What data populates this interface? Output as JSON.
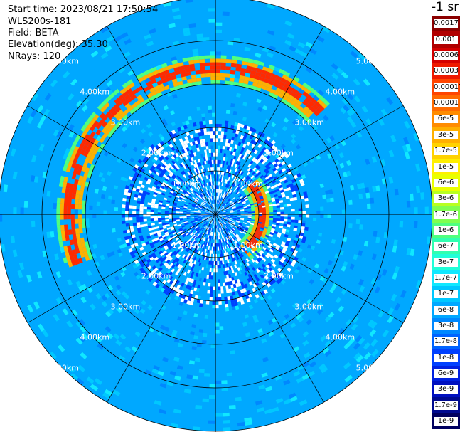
{
  "header": {
    "start_time": "Start time: 2023/08/21 17:50:54",
    "instrument": "WLS200s-181",
    "field": "Field: BETA",
    "elevation": "Elevation(deg): 35.30",
    "nrays": "NRays: 120"
  },
  "colorbar": {
    "unit_label": "-1 sr",
    "bins": [
      {
        "label": "0.0017",
        "color": "#8b0000"
      },
      {
        "label": "0.001",
        "color": "#b00000"
      },
      {
        "label": "0.0006",
        "color": "#d40000"
      },
      {
        "label": "0.0003",
        "color": "#ee1a00"
      },
      {
        "label": "0.00017",
        "color": "#ff4500"
      },
      {
        "label": "0.0001",
        "color": "#ff6a00"
      },
      {
        "label": "6e-5",
        "color": "#ff8c00"
      },
      {
        "label": "3e-5",
        "color": "#ffb000"
      },
      {
        "label": "1.7e-5",
        "color": "#ffd200"
      },
      {
        "label": "1e-5",
        "color": "#ffef00"
      },
      {
        "label": "6e-6",
        "color": "#eaff00"
      },
      {
        "label": "3e-6",
        "color": "#b9ff20"
      },
      {
        "label": "1.7e-6",
        "color": "#80ff50"
      },
      {
        "label": "1e-6",
        "color": "#50ff80"
      },
      {
        "label": "6e-7",
        "color": "#30ffb0"
      },
      {
        "label": "3e-7",
        "color": "#20ffd8"
      },
      {
        "label": "1.7e-7",
        "color": "#10e8ff"
      },
      {
        "label": "1e-7",
        "color": "#00c8ff"
      },
      {
        "label": "6e-8",
        "color": "#00a8ff"
      },
      {
        "label": "3e-8",
        "color": "#0088ff"
      },
      {
        "label": "1.7e-8",
        "color": "#0064ff"
      },
      {
        "label": "1e-8",
        "color": "#0040ff"
      },
      {
        "label": "6e-9",
        "color": "#0020e0"
      },
      {
        "label": "3e-9",
        "color": "#0010c0"
      },
      {
        "label": "1.7e-9",
        "color": "#000a90"
      },
      {
        "label": "1e-9",
        "color": "#000060"
      }
    ]
  },
  "chart_data": {
    "type": "heatmap",
    "projection": "polar PPI scan",
    "field": "BETA",
    "elevation_deg": 35.3,
    "n_rays": 120,
    "range_rings_km": [
      1,
      2,
      3,
      4,
      5
    ],
    "range_ring_labels": [
      "1.00km",
      "2.00km",
      "3.00km",
      "4.00km",
      "5.00km"
    ],
    "max_range_km": 5.0,
    "background_level": "1e-7 to 6e-8",
    "features": [
      {
        "description": "aerosol/cloud arc",
        "range_km": [
          3.0,
          3.7
        ],
        "azimuth_deg": [
          250,
          45
        ],
        "beta_peak": "0.0001"
      },
      {
        "description": "near-field enhancement",
        "range_km": [
          0.8,
          1.3
        ],
        "azimuth_deg": [
          50,
          140
        ],
        "beta_peak": "0.0006"
      }
    ]
  }
}
